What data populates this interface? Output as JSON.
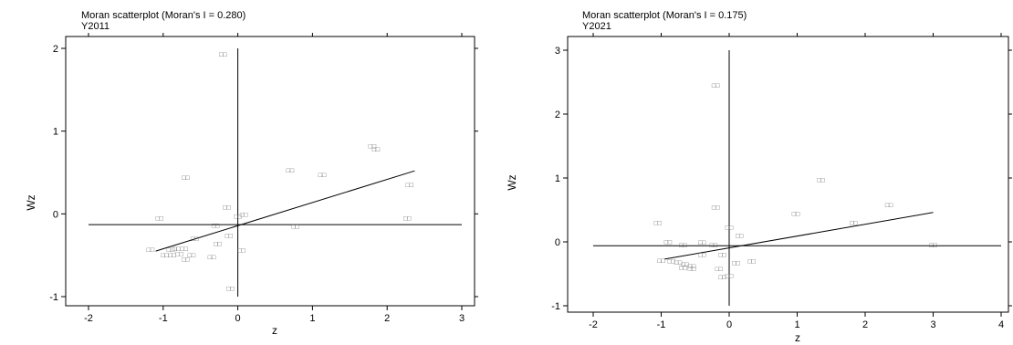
{
  "chart_data": [
    {
      "type": "scatter",
      "title": "Moran scatterplot (Moran's I = 0.280)",
      "subtitle": "Y2011",
      "xlabel": "z",
      "ylabel": "Wz",
      "xlim": [
        -2,
        3
      ],
      "ylim": [
        -1,
        2
      ],
      "xticks": [
        "-2",
        "-1",
        "0",
        "1",
        "2",
        "3"
      ],
      "yticks": [
        "-1",
        "0",
        "1",
        "2"
      ],
      "point_label": "□□",
      "reference_lines": {
        "x": 0,
        "y": -0.13
      },
      "fit_line": [
        [
          -1.1,
          -0.45
        ],
        [
          2.37,
          0.52
        ]
      ],
      "points": [
        [
          -0.2,
          1.93
        ],
        [
          1.8,
          0.82
        ],
        [
          1.85,
          0.78
        ],
        [
          0.7,
          0.53
        ],
        [
          1.13,
          0.47
        ],
        [
          -0.7,
          0.44
        ],
        [
          2.3,
          0.35
        ],
        [
          -0.15,
          0.08
        ],
        [
          0.0,
          -0.03
        ],
        [
          0.08,
          -0.01
        ],
        [
          -1.05,
          -0.05
        ],
        [
          2.27,
          -0.05
        ],
        [
          -0.3,
          -0.14
        ],
        [
          0.77,
          -0.15
        ],
        [
          -0.58,
          -0.3
        ],
        [
          -0.12,
          -0.26
        ],
        [
          -0.27,
          -0.36
        ],
        [
          -1.17,
          -0.43
        ],
        [
          -0.9,
          -0.43
        ],
        [
          -0.82,
          -0.42
        ],
        [
          -0.72,
          -0.42
        ],
        [
          0.05,
          -0.44
        ],
        [
          -0.98,
          -0.5
        ],
        [
          -0.88,
          -0.5
        ],
        [
          -0.78,
          -0.48
        ],
        [
          -0.62,
          -0.5
        ],
        [
          -0.35,
          -0.52
        ],
        [
          -0.7,
          -0.55
        ],
        [
          -0.1,
          -0.9
        ]
      ]
    },
    {
      "type": "scatter",
      "title": "Moran scatterplot (Moran's I = 0.175)",
      "subtitle": "Y2021",
      "xlabel": "z",
      "ylabel": "Wz",
      "xlim": [
        -2,
        4
      ],
      "ylim": [
        -1,
        3
      ],
      "xticks": [
        "-2",
        "-1",
        "0",
        "1",
        "2",
        "3",
        "4"
      ],
      "yticks": [
        "-1",
        "0",
        "1",
        "2",
        "3"
      ],
      "point_label": "□□",
      "reference_lines": {
        "x": 0,
        "y": -0.06
      },
      "fit_line": [
        [
          -0.95,
          -0.27
        ],
        [
          3.0,
          0.46
        ]
      ],
      "points": [
        [
          -0.2,
          2.45
        ],
        [
          1.35,
          0.97
        ],
        [
          2.35,
          0.58
        ],
        [
          -0.2,
          0.54
        ],
        [
          0.98,
          0.44
        ],
        [
          1.83,
          0.3
        ],
        [
          -1.05,
          0.3
        ],
        [
          0.0,
          0.23
        ],
        [
          0.15,
          0.1
        ],
        [
          -0.9,
          0.0
        ],
        [
          -0.68,
          -0.05
        ],
        [
          -0.4,
          -0.01
        ],
        [
          -0.23,
          -0.05
        ],
        [
          3.0,
          -0.05
        ],
        [
          -0.4,
          -0.2
        ],
        [
          -0.1,
          -0.2
        ],
        [
          -1.0,
          -0.29
        ],
        [
          -0.85,
          -0.3
        ],
        [
          -0.75,
          -0.32
        ],
        [
          -0.65,
          -0.35
        ],
        [
          -0.55,
          -0.38
        ],
        [
          0.1,
          -0.33
        ],
        [
          0.33,
          -0.3
        ],
        [
          -0.68,
          -0.4
        ],
        [
          -0.55,
          -0.42
        ],
        [
          -0.15,
          -0.42
        ],
        [
          0.0,
          -0.53
        ],
        [
          -0.1,
          -0.55
        ]
      ]
    }
  ]
}
